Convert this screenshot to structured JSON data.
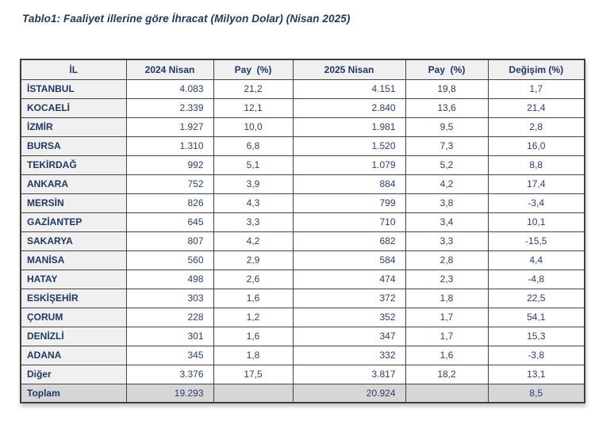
{
  "title": "Tablo1: Faaliyet illerine göre İhracat (Milyon Dolar) (Nisan 2025)",
  "table": {
    "columns": [
      "İL",
      "2024 Nisan",
      "Pay  (%)",
      "2025 Nisan",
      "Pay  (%)",
      "Değişim (%)"
    ],
    "rows": [
      {
        "il": "İSTANBUL",
        "nisan2024": "4.083",
        "pay2024": "21,2",
        "nisan2025": "4.151",
        "pay2025": "19,8",
        "degisim": "1,7"
      },
      {
        "il": "KOCAELİ",
        "nisan2024": "2.339",
        "pay2024": "12,1",
        "nisan2025": "2.840",
        "pay2025": "13,6",
        "degisim": "21,4"
      },
      {
        "il": "İZMİR",
        "nisan2024": "1.927",
        "pay2024": "10,0",
        "nisan2025": "1.981",
        "pay2025": "9,5",
        "degisim": "2,8"
      },
      {
        "il": "BURSA",
        "nisan2024": "1.310",
        "pay2024": "6,8",
        "nisan2025": "1.520",
        "pay2025": "7,3",
        "degisim": "16,0"
      },
      {
        "il": "TEKİRDAĞ",
        "nisan2024": "992",
        "pay2024": "5,1",
        "nisan2025": "1.079",
        "pay2025": "5,2",
        "degisim": "8,8"
      },
      {
        "il": "ANKARA",
        "nisan2024": "752",
        "pay2024": "3,9",
        "nisan2025": "884",
        "pay2025": "4,2",
        "degisim": "17,4"
      },
      {
        "il": "MERSİN",
        "nisan2024": "826",
        "pay2024": "4,3",
        "nisan2025": "799",
        "pay2025": "3,8",
        "degisim": "-3,4"
      },
      {
        "il": "GAZİANTEP",
        "nisan2024": "645",
        "pay2024": "3,3",
        "nisan2025": "710",
        "pay2025": "3,4",
        "degisim": "10,1"
      },
      {
        "il": "SAKARYA",
        "nisan2024": "807",
        "pay2024": "4,2",
        "nisan2025": "682",
        "pay2025": "3,3",
        "degisim": "-15,5"
      },
      {
        "il": "MANİSA",
        "nisan2024": "560",
        "pay2024": "2,9",
        "nisan2025": "584",
        "pay2025": "2,8",
        "degisim": "4,4"
      },
      {
        "il": "HATAY",
        "nisan2024": "498",
        "pay2024": "2,6",
        "nisan2025": "474",
        "pay2025": "2,3",
        "degisim": "-4,8"
      },
      {
        "il": "ESKİŞEHİR",
        "nisan2024": "303",
        "pay2024": "1,6",
        "nisan2025": "372",
        "pay2025": "1,8",
        "degisim": "22,5"
      },
      {
        "il": "ÇORUM",
        "nisan2024": "228",
        "pay2024": "1,2",
        "nisan2025": "352",
        "pay2025": "1,7",
        "degisim": "54,1"
      },
      {
        "il": "DENİZLİ",
        "nisan2024": "301",
        "pay2024": "1,6",
        "nisan2025": "347",
        "pay2025": "1,7",
        "degisim": "15,3"
      },
      {
        "il": "ADANA",
        "nisan2024": "345",
        "pay2024": "1,8",
        "nisan2025": "332",
        "pay2025": "1,6",
        "degisim": "-3,8"
      },
      {
        "il": "Diğer",
        "nisan2024": "3.376",
        "pay2024": "17,5",
        "nisan2025": "3.817",
        "pay2025": "18,2",
        "degisim": "13,1"
      }
    ],
    "total": {
      "il": "Toplam",
      "nisan2024": "19.293",
      "pay2024": "",
      "nisan2025": "20.924",
      "pay2025": "",
      "degisim": "8,5"
    }
  },
  "colors": {
    "accent_text": "#1f3864",
    "header_bg": "#f0f0f0",
    "label_column_bg": "#f0f0f0",
    "total_row_bg": "#d6d6d6",
    "border": "#434343"
  }
}
